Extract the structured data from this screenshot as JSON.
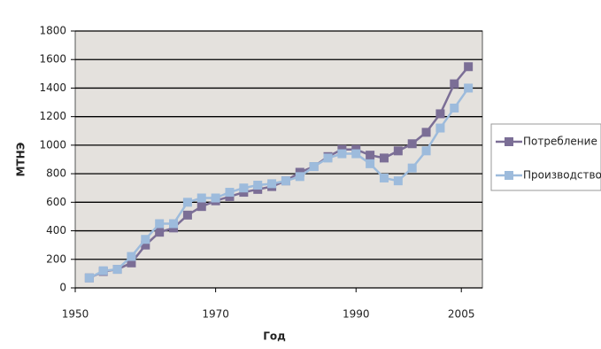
{
  "chart_data": {
    "type": "line",
    "x": [
      1952,
      1954,
      1956,
      1958,
      1960,
      1962,
      1964,
      1966,
      1968,
      1970,
      1972,
      1974,
      1976,
      1978,
      1980,
      1982,
      1984,
      1986,
      1988,
      1990,
      1992,
      1994,
      1996,
      1998,
      2000,
      2002,
      2004,
      2006
    ],
    "series": [
      {
        "name": "Потребление",
        "color": "#7b6e96",
        "values": [
          70,
          115,
          130,
          175,
          300,
          390,
          420,
          510,
          570,
          610,
          640,
          670,
          690,
          710,
          750,
          810,
          850,
          920,
          970,
          970,
          930,
          910,
          960,
          1010,
          1090,
          1220,
          1430,
          1550
        ]
      },
      {
        "name": "Производство",
        "color": "#9dbbdc",
        "values": [
          70,
          120,
          130,
          220,
          340,
          450,
          450,
          600,
          630,
          630,
          670,
          700,
          720,
          730,
          750,
          780,
          850,
          910,
          940,
          940,
          870,
          770,
          750,
          840,
          960,
          1120,
          1260,
          1400
        ]
      }
    ],
    "xlabel": "Год",
    "ylabel": "МТНЭ",
    "xlim": [
      1950,
      2008
    ],
    "xticks": [
      1950,
      1970,
      1990,
      2005
    ],
    "ylim": [
      0,
      1800
    ],
    "yticks": [
      0,
      200,
      400,
      600,
      800,
      1000,
      1200,
      1400,
      1600,
      1800
    ],
    "grid": true,
    "legend": "right"
  }
}
